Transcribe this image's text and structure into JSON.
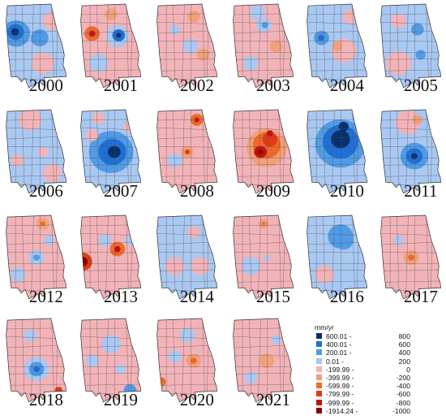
{
  "legend": {
    "unit": "mm/yr",
    "classes": [
      {
        "lower": "600.01 -",
        "upper": "800",
        "color": "#08306b"
      },
      {
        "lower": "400.01 -",
        "upper": "600",
        "color": "#1f6fd6"
      },
      {
        "lower": "200.01 -",
        "upper": "400",
        "color": "#4f9be6"
      },
      {
        "lower": "0.01 -",
        "upper": "200",
        "color": "#a9c8f2"
      },
      {
        "lower": "-199.99 -",
        "upper": "0",
        "color": "#f2b3b8"
      },
      {
        "lower": "-399.99 -",
        "upper": "-200",
        "color": "#f2a07b"
      },
      {
        "lower": "-599.99 -",
        "upper": "-400",
        "color": "#ee6a2a"
      },
      {
        "lower": "-799.99 -",
        "upper": "-600",
        "color": "#e03a17"
      },
      {
        "lower": "-999.99 -",
        "upper": "-800",
        "color": "#c5120f"
      },
      {
        "lower": "-1914.24 -",
        "upper": "-1000",
        "color": "#8b0000"
      }
    ]
  },
  "panels": [
    {
      "year": "2000",
      "base": "#a9c8f2",
      "blobs": [
        [
          0.18,
          0.35,
          0.22,
          "#4f9be6"
        ],
        [
          0.17,
          0.33,
          0.13,
          "#1f6fd6"
        ],
        [
          0.16,
          0.33,
          0.06,
          "#08306b"
        ],
        [
          0.55,
          0.4,
          0.14,
          "#4f9be6"
        ],
        [
          0.6,
          0.7,
          0.18,
          "#f2b3b8"
        ],
        [
          0.75,
          0.2,
          0.15,
          "#f2b3b8"
        ]
      ]
    },
    {
      "year": "2001",
      "base": "#f2b3b8",
      "blobs": [
        [
          0.6,
          0.38,
          0.18,
          "#a9c8f2"
        ],
        [
          0.62,
          0.37,
          0.1,
          "#1f6fd6"
        ],
        [
          0.62,
          0.37,
          0.04,
          "#08306b"
        ],
        [
          0.2,
          0.35,
          0.12,
          "#ee6a2a"
        ],
        [
          0.2,
          0.35,
          0.05,
          "#c5120f"
        ],
        [
          0.5,
          0.12,
          0.1,
          "#f2a07b"
        ],
        [
          0.3,
          0.7,
          0.15,
          "#a9c8f2"
        ]
      ]
    },
    {
      "year": "2002",
      "base": "#f2b3b8",
      "blobs": [
        [
          0.55,
          0.5,
          0.12,
          "#a9c8f2"
        ],
        [
          0.6,
          0.15,
          0.1,
          "#f2a07b"
        ],
        [
          0.3,
          0.3,
          0.08,
          "#a9c8f2"
        ],
        [
          0.75,
          0.6,
          0.1,
          "#f2a07b"
        ]
      ]
    },
    {
      "year": "2003",
      "base": "#f2b3b8",
      "blobs": [
        [
          0.5,
          0.25,
          0.12,
          "#a9c8f2"
        ],
        [
          0.52,
          0.25,
          0.05,
          "#4f9be6"
        ],
        [
          0.3,
          0.7,
          0.12,
          "#a9c8f2"
        ],
        [
          0.7,
          0.5,
          0.1,
          "#f2a07b"
        ],
        [
          0.4,
          0.1,
          0.12,
          "#a9c8f2"
        ]
      ]
    },
    {
      "year": "2004",
      "base": "#a9c8f2",
      "blobs": [
        [
          0.6,
          0.55,
          0.2,
          "#f2b3b8"
        ],
        [
          0.25,
          0.4,
          0.12,
          "#4f9be6"
        ],
        [
          0.24,
          0.4,
          0.05,
          "#1f6fd6"
        ],
        [
          0.7,
          0.15,
          0.12,
          "#f2b3b8"
        ],
        [
          0.5,
          0.5,
          0.08,
          "#f2a07b"
        ]
      ]
    },
    {
      "year": "2005",
      "base": "#a9c8f2",
      "blobs": [
        [
          0.3,
          0.7,
          0.2,
          "#f2b3b8"
        ],
        [
          0.6,
          0.3,
          0.1,
          "#4f9be6"
        ],
        [
          0.65,
          0.6,
          0.08,
          "#4f9be6"
        ],
        [
          0.3,
          0.2,
          0.12,
          "#f2b3b8"
        ]
      ]
    },
    {
      "year": "2006",
      "base": "#a9c8f2",
      "blobs": [
        [
          0.4,
          0.12,
          0.18,
          "#f2b3b8"
        ],
        [
          0.2,
          0.6,
          0.1,
          "#f2b3b8"
        ],
        [
          0.6,
          0.5,
          0.08,
          "#f2b3b8"
        ],
        [
          0.75,
          0.75,
          0.15,
          "#f2b3b8"
        ]
      ]
    },
    {
      "year": "2007",
      "base": "#a9c8f2",
      "blobs": [
        [
          0.5,
          0.5,
          0.35,
          "#4f9be6"
        ],
        [
          0.52,
          0.5,
          0.22,
          "#1f6fd6"
        ],
        [
          0.55,
          0.5,
          0.1,
          "#08306b"
        ],
        [
          0.2,
          0.3,
          0.1,
          "#f2b3b8"
        ],
        [
          0.8,
          0.2,
          0.1,
          "#f2b3b8"
        ],
        [
          0.3,
          0.1,
          0.1,
          "#f2b3b8"
        ]
      ]
    },
    {
      "year": "2008",
      "base": "#f2b3b8",
      "blobs": [
        [
          0.65,
          0.12,
          0.1,
          "#ee6a2a"
        ],
        [
          0.65,
          0.12,
          0.04,
          "#c5120f"
        ],
        [
          0.5,
          0.5,
          0.1,
          "#f2a07b"
        ],
        [
          0.5,
          0.5,
          0.04,
          "#e03a17"
        ],
        [
          0.3,
          0.6,
          0.12,
          "#a9c8f2"
        ]
      ]
    },
    {
      "year": "2009",
      "base": "#f2b3b8",
      "blobs": [
        [
          0.55,
          0.45,
          0.32,
          "#f2a07b"
        ],
        [
          0.55,
          0.42,
          0.22,
          "#ee6a2a"
        ],
        [
          0.6,
          0.35,
          0.12,
          "#e03a17"
        ],
        [
          0.45,
          0.5,
          0.1,
          "#c5120f"
        ],
        [
          0.45,
          0.5,
          0.04,
          "#8b0000"
        ],
        [
          0.6,
          0.28,
          0.05,
          "#c5120f"
        ]
      ]
    },
    {
      "year": "2010",
      "base": "#a9c8f2",
      "blobs": [
        [
          0.55,
          0.4,
          0.4,
          "#4f9be6"
        ],
        [
          0.55,
          0.38,
          0.28,
          "#1f6fd6"
        ],
        [
          0.55,
          0.35,
          0.15,
          "#08306b"
        ],
        [
          0.6,
          0.2,
          0.08,
          "#08306b"
        ]
      ]
    },
    {
      "year": "2011",
      "base": "#a9c8f2",
      "blobs": [
        [
          0.45,
          0.15,
          0.2,
          "#f2b3b8"
        ],
        [
          0.6,
          0.12,
          0.08,
          "#f2a07b"
        ],
        [
          0.55,
          0.55,
          0.22,
          "#4f9be6"
        ],
        [
          0.55,
          0.55,
          0.13,
          "#1f6fd6"
        ],
        [
          0.55,
          0.55,
          0.05,
          "#08306b"
        ]
      ]
    },
    {
      "year": "2012",
      "base": "#f2b3b8",
      "blobs": [
        [
          0.5,
          0.5,
          0.12,
          "#a9c8f2"
        ],
        [
          0.5,
          0.5,
          0.05,
          "#4f9be6"
        ],
        [
          0.6,
          0.1,
          0.1,
          "#f2a07b"
        ],
        [
          0.6,
          0.1,
          0.04,
          "#ee6a2a"
        ],
        [
          0.2,
          0.7,
          0.12,
          "#a9c8f2"
        ],
        [
          0.7,
          0.3,
          0.08,
          "#a9c8f2"
        ]
      ]
    },
    {
      "year": "2013",
      "base": "#f2b3b8",
      "blobs": [
        [
          0.05,
          0.55,
          0.15,
          "#e03a17"
        ],
        [
          0.05,
          0.55,
          0.08,
          "#8b0000"
        ],
        [
          0.6,
          0.4,
          0.12,
          "#ee6a2a"
        ],
        [
          0.6,
          0.4,
          0.05,
          "#c5120f"
        ],
        [
          0.4,
          0.3,
          0.1,
          "#a9c8f2"
        ],
        [
          0.8,
          0.3,
          0.08,
          "#a9c8f2"
        ]
      ]
    },
    {
      "year": "2014",
      "base": "#a9c8f2",
      "blobs": [
        [
          0.3,
          0.6,
          0.15,
          "#f2b3b8"
        ],
        [
          0.7,
          0.6,
          0.15,
          "#f2b3b8"
        ],
        [
          0.6,
          0.2,
          0.1,
          "#f2b3b8"
        ]
      ]
    },
    {
      "year": "2015",
      "base": "#f2b3b8",
      "blobs": [
        [
          0.3,
          0.6,
          0.15,
          "#a9c8f2"
        ],
        [
          0.5,
          0.1,
          0.08,
          "#f2a07b"
        ],
        [
          0.5,
          0.1,
          0.03,
          "#ee6a2a"
        ],
        [
          0.55,
          0.5,
          0.05,
          "#a9c8f2"
        ]
      ]
    },
    {
      "year": "2016",
      "base": "#a9c8f2",
      "blobs": [
        [
          0.55,
          0.25,
          0.2,
          "#4f9be6"
        ],
        [
          0.6,
          0.3,
          0.15,
          "#4f9be6"
        ],
        [
          0.3,
          0.7,
          0.15,
          "#f2b3b8"
        ]
      ]
    },
    {
      "year": "2017",
      "base": "#f2b3b8",
      "blobs": [
        [
          0.5,
          0.5,
          0.12,
          "#f2a07b"
        ],
        [
          0.5,
          0.5,
          0.05,
          "#ee6a2a"
        ],
        [
          0.3,
          0.3,
          0.08,
          "#a9c8f2"
        ]
      ]
    },
    {
      "year": "2018",
      "base": "#f2b3b8",
      "blobs": [
        [
          0.5,
          0.6,
          0.2,
          "#a9c8f2"
        ],
        [
          0.5,
          0.6,
          0.12,
          "#4f9be6"
        ],
        [
          0.5,
          0.6,
          0.05,
          "#1f6fd6"
        ],
        [
          0.4,
          0.2,
          0.1,
          "#a9c8f2"
        ],
        [
          0.85,
          0.85,
          0.06,
          "#e03a17"
        ]
      ]
    },
    {
      "year": "2019",
      "base": "#f2b3b8",
      "blobs": [
        [
          0.5,
          0.3,
          0.15,
          "#a9c8f2"
        ],
        [
          0.8,
          0.85,
          0.1,
          "#4f9be6"
        ],
        [
          0.2,
          0.5,
          0.1,
          "#a9c8f2"
        ],
        [
          0.65,
          0.6,
          0.08,
          "#a9c8f2"
        ]
      ]
    },
    {
      "year": "2020",
      "base": "#f2b3b8",
      "blobs": [
        [
          0.6,
          0.5,
          0.12,
          "#f2a07b"
        ],
        [
          0.6,
          0.5,
          0.05,
          "#ee6a2a"
        ],
        [
          0.08,
          0.75,
          0.08,
          "#ee6a2a"
        ],
        [
          0.5,
          0.2,
          0.12,
          "#a9c8f2"
        ],
        [
          0.3,
          0.45,
          0.1,
          "#a9c8f2"
        ]
      ]
    },
    {
      "year": "2021",
      "base": "#f2b3b8",
      "blobs": [
        [
          0.55,
          0.5,
          0.12,
          "#f2a07b"
        ],
        [
          0.7,
          0.25,
          0.08,
          "#a9c8f2"
        ],
        [
          0.3,
          0.7,
          0.1,
          "#a9c8f2"
        ]
      ]
    }
  ]
}
